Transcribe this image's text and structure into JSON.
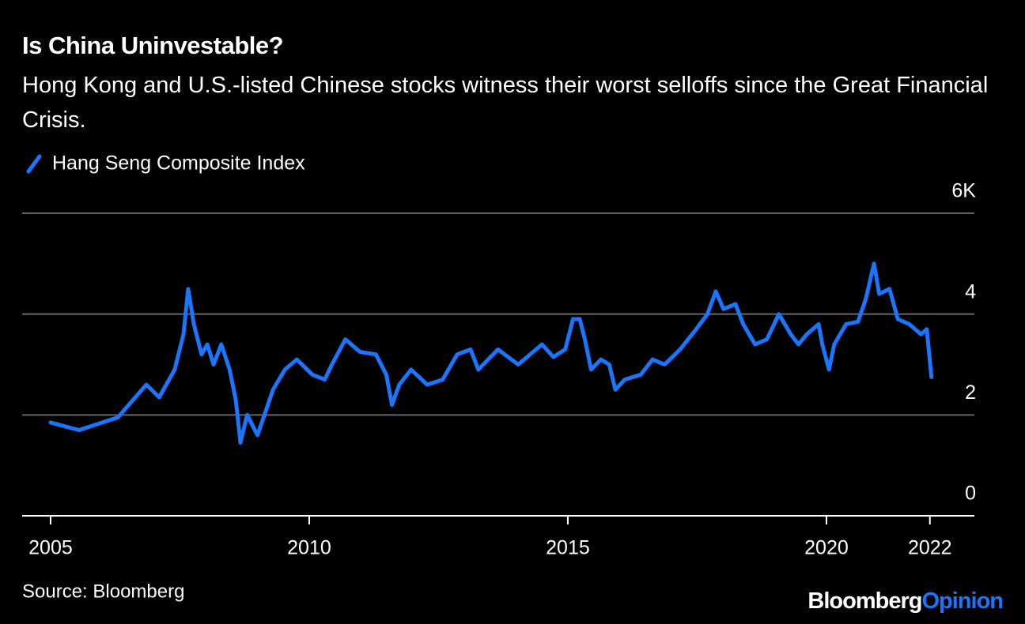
{
  "chart_data": {
    "type": "line",
    "title": "Is China Uninvestable?",
    "subtitle": "Hong Kong and U.S.-listed Chinese stocks witness their worst selloffs since the Great Financial Crisis.",
    "source": "Source: Bloomberg",
    "logo": {
      "brand": "Bloomberg",
      "product": "Opinion"
    },
    "x": [
      2005.0,
      2005.55,
      2006.3,
      2006.85,
      2007.1,
      2007.4,
      2007.57,
      2007.66,
      2007.77,
      2007.92,
      2008.03,
      2008.15,
      2008.3,
      2008.46,
      2008.58,
      2008.67,
      2008.8,
      2009.0,
      2009.3,
      2009.53,
      2009.76,
      2010.06,
      2010.3,
      2010.44,
      2010.7,
      2010.98,
      2011.29,
      2011.49,
      2011.6,
      2011.74,
      2011.97,
      2012.28,
      2012.58,
      2012.86,
      2013.12,
      2013.27,
      2013.65,
      2014.04,
      2014.5,
      2014.72,
      2014.95,
      2015.1,
      2015.23,
      2015.33,
      2015.45,
      2015.64,
      2015.8,
      2015.92,
      2016.1,
      2016.41,
      2016.64,
      2016.87,
      2017.17,
      2017.48,
      2017.7,
      2017.86,
      2018.01,
      2018.24,
      2018.39,
      2018.62,
      2018.85,
      2019.08,
      2019.31,
      2019.46,
      2019.62,
      2019.85,
      2019.92,
      2020.05,
      2020.15,
      2020.38,
      2020.61,
      2020.76,
      2020.92,
      2021.02,
      2021.22,
      2021.38,
      2021.6,
      2021.83,
      2021.94,
      2022.03
    ],
    "series": [
      {
        "name": "Hang Seng Composite Index",
        "color": "#1a75ff",
        "values": [
          1.85,
          1.7,
          1.95,
          2.6,
          2.35,
          2.9,
          3.6,
          4.5,
          3.8,
          3.2,
          3.4,
          3.0,
          3.4,
          2.9,
          2.3,
          1.45,
          2.0,
          1.6,
          2.5,
          2.9,
          3.1,
          2.8,
          2.7,
          3.0,
          3.5,
          3.25,
          3.2,
          2.8,
          2.2,
          2.6,
          2.9,
          2.6,
          2.7,
          3.2,
          3.3,
          2.9,
          3.3,
          3.0,
          3.4,
          3.15,
          3.3,
          3.9,
          3.9,
          3.5,
          2.9,
          3.1,
          3.0,
          2.5,
          2.7,
          2.8,
          3.1,
          3.0,
          3.3,
          3.7,
          4.0,
          4.45,
          4.1,
          4.2,
          3.8,
          3.4,
          3.5,
          4.0,
          3.6,
          3.4,
          3.6,
          3.8,
          3.4,
          2.9,
          3.4,
          3.8,
          3.85,
          4.3,
          5.0,
          4.4,
          4.5,
          3.9,
          3.8,
          3.6,
          3.7,
          2.75
        ]
      }
    ],
    "xlim": [
      2004.45,
      2022.86
    ],
    "xticks": [
      2005,
      2010,
      2015,
      2020,
      2022
    ],
    "ylim": [
      0,
      6
    ],
    "yticks": [
      0,
      2,
      4,
      {
        "value": 6,
        "label": "6K"
      }
    ],
    "grid": true
  }
}
